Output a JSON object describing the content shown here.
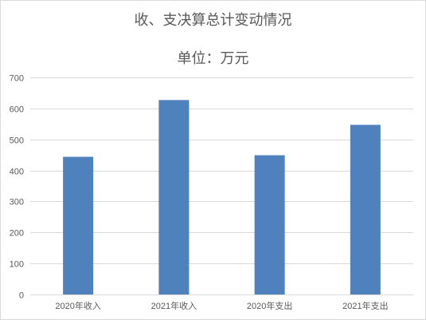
{
  "chart_data": {
    "type": "bar",
    "title": "收、支决算总计变动情况",
    "subtitle": "单位：万元",
    "categories": [
      "2020年收入",
      "2021年收入",
      "2020年支出",
      "2021年支出"
    ],
    "values": [
      444,
      627,
      449,
      547
    ],
    "ylim": [
      0,
      700
    ],
    "yticks": [
      0,
      100,
      200,
      300,
      400,
      500,
      600,
      700
    ],
    "grid": true,
    "legend": "none",
    "bar_color": "#4f81bd",
    "grid_color": "#d9d9d9",
    "text_color": "#595959"
  }
}
